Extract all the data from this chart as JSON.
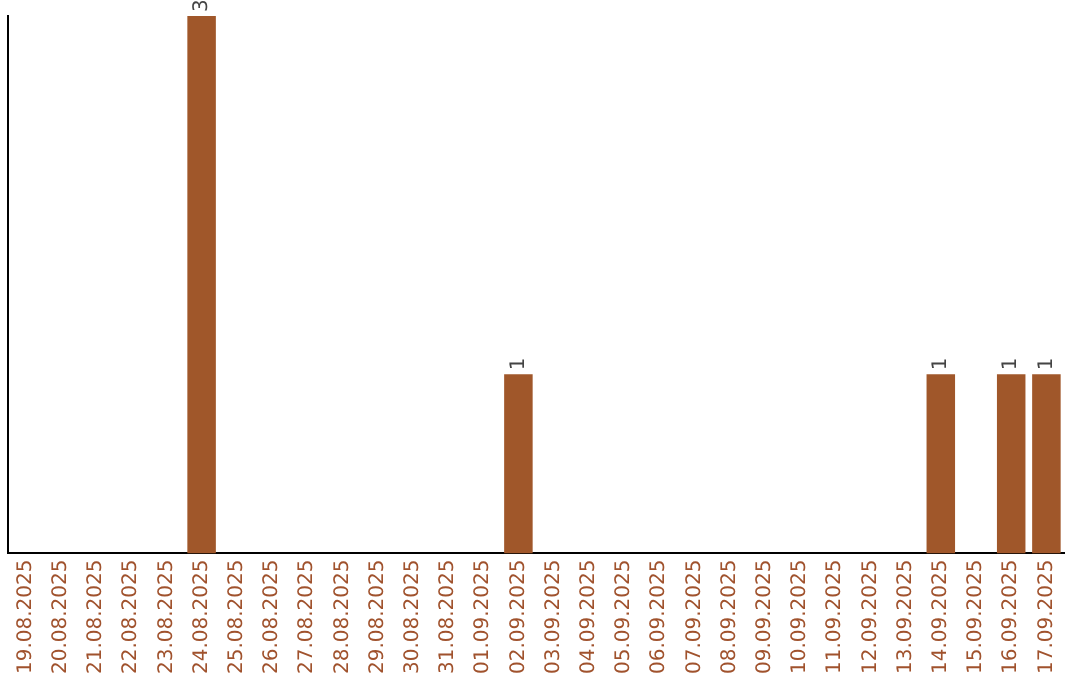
{
  "chart_data": {
    "type": "bar",
    "categories": [
      "19.08.2025",
      "20.08.2025",
      "21.08.2025",
      "22.08.2025",
      "23.08.2025",
      "24.08.2025",
      "25.08.2025",
      "26.08.2025",
      "27.08.2025",
      "28.08.2025",
      "29.08.2025",
      "30.08.2025",
      "31.08.2025",
      "01.09.2025",
      "02.09.2025",
      "03.09.2025",
      "04.09.2025",
      "05.09.2025",
      "06.09.2025",
      "07.09.2025",
      "08.09.2025",
      "09.09.2025",
      "10.09.2025",
      "11.09.2025",
      "12.09.2025",
      "13.09.2025",
      "14.09.2025",
      "15.09.2025",
      "16.09.2025",
      "17.09.2025"
    ],
    "values": [
      0,
      0,
      0,
      0,
      0,
      3,
      0,
      0,
      0,
      0,
      0,
      0,
      0,
      0,
      1,
      0,
      0,
      0,
      0,
      0,
      0,
      0,
      0,
      0,
      0,
      0,
      1,
      0,
      1,
      1
    ],
    "value_labels": [
      null,
      null,
      null,
      null,
      null,
      "3",
      null,
      null,
      null,
      null,
      null,
      null,
      null,
      null,
      "1",
      null,
      null,
      null,
      null,
      null,
      null,
      null,
      null,
      null,
      null,
      null,
      "1",
      null,
      "1",
      "1"
    ],
    "color": "#a0572a",
    "ylim": [
      0,
      3
    ],
    "grid": false,
    "legend": false,
    "tick_labels": "x"
  }
}
